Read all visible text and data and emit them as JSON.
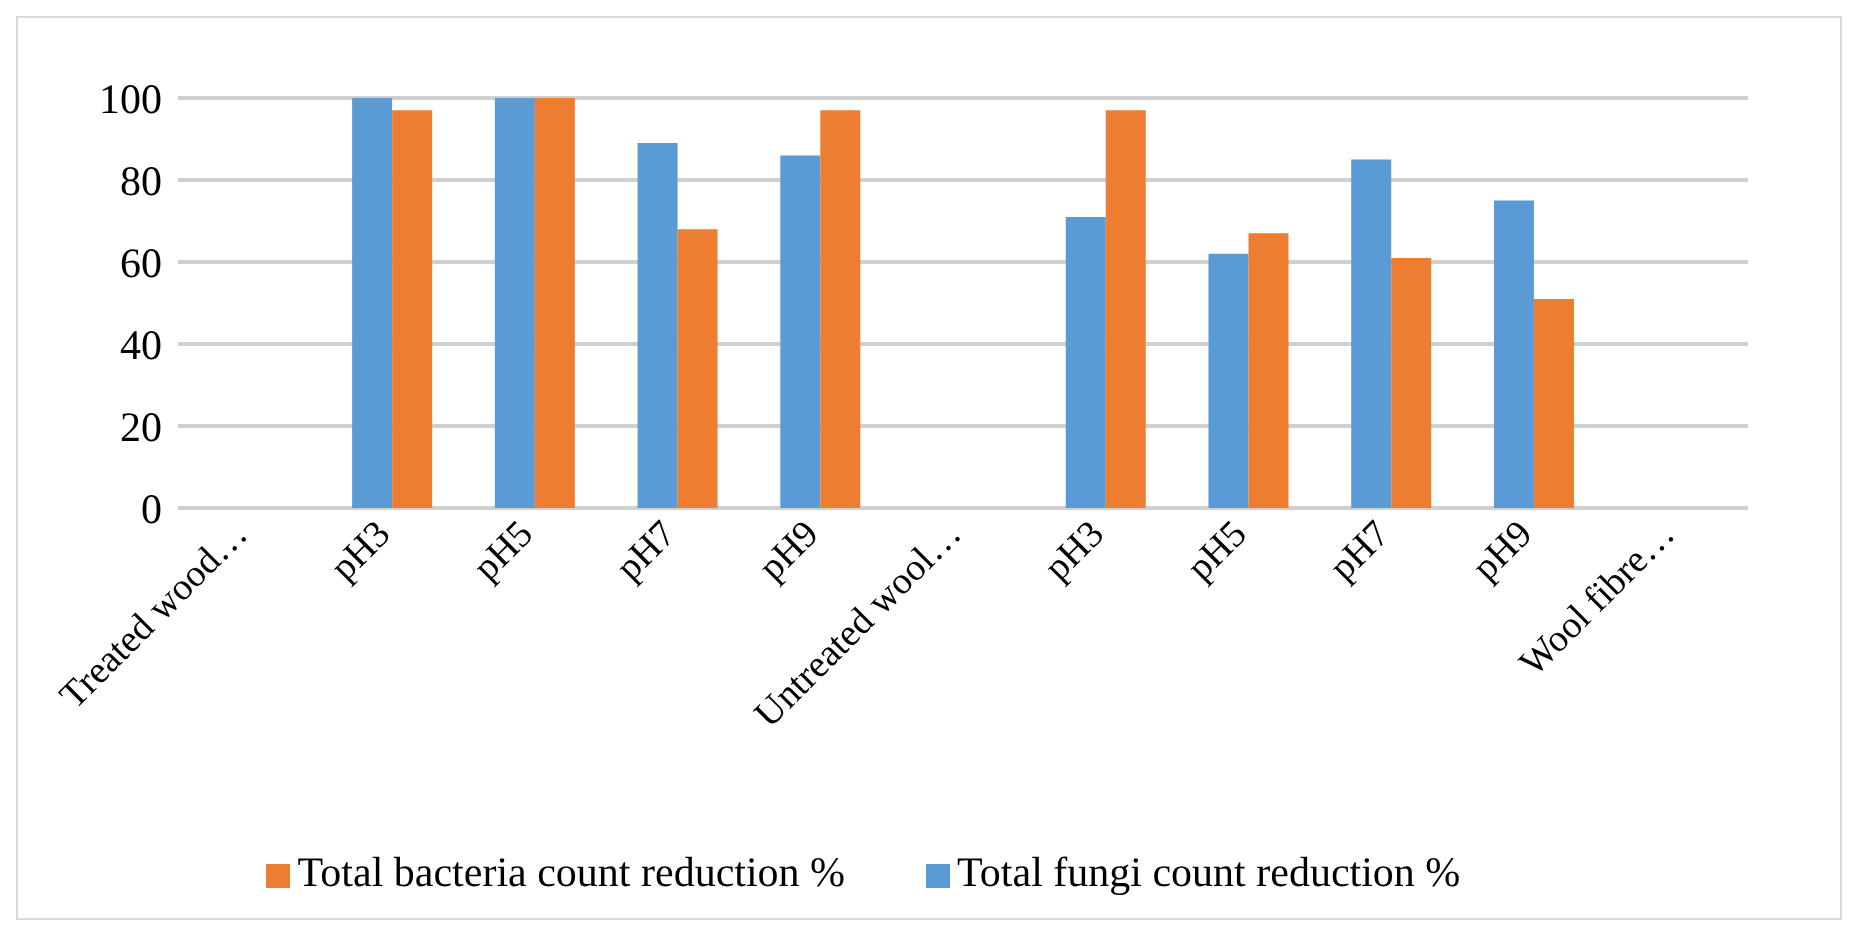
{
  "chart_data": {
    "type": "bar",
    "categories": [
      "Treated wood…",
      "pH3",
      "pH5",
      "pH7",
      "pH9",
      "Untreated wool…",
      "pH3",
      "pH5",
      "pH7",
      "pH9",
      "Wool fibre…"
    ],
    "series": [
      {
        "name": "Total fungi count reduction %",
        "color": "#5b9bd5",
        "values": [
          0,
          100,
          100,
          89,
          86,
          0,
          71,
          62,
          85,
          75,
          0
        ]
      },
      {
        "name": "Total bacteria count reduction  %",
        "color": "#ed7d31",
        "values": [
          0,
          97,
          100,
          68,
          97,
          0,
          97,
          67,
          61,
          51,
          0
        ]
      }
    ],
    "ylim": [
      0,
      100
    ],
    "yticks": [
      0,
      20,
      40,
      60,
      80,
      100
    ],
    "grid": "y",
    "legend": "bottom"
  }
}
